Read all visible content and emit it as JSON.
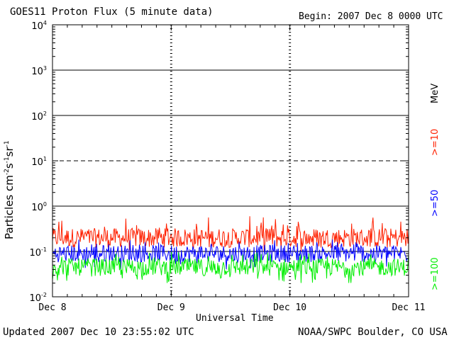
{
  "chart_data": {
    "type": "line",
    "title": "GOES11 Proton Flux (5 minute data)",
    "begin_label": "Begin: 2007 Dec 8 0000 UTC",
    "ylabel": "Particles cm⁻²s⁻¹sr⁻¹",
    "ylabel_main": "Particles cm",
    "ylabel_sup1": "-2",
    "ylabel_mid1": "s",
    "ylabel_sup2": "-1",
    "ylabel_mid2": "sr",
    "ylabel_sup3": "-1",
    "xlabel": "Universal Time",
    "yscale": "log",
    "ylim": [
      0.01,
      10000
    ],
    "y_ticks": [
      {
        "base": "10",
        "exp": "4"
      },
      {
        "base": "10",
        "exp": "3"
      },
      {
        "base": "10",
        "exp": "2"
      },
      {
        "base": "10",
        "exp": "1"
      },
      {
        "base": "10",
        "exp": "0"
      },
      {
        "base": "10",
        "exp": "-1"
      },
      {
        "base": "10",
        "exp": "-2"
      }
    ],
    "x_ticks": [
      "Dec 8",
      "Dec 9",
      "Dec 10",
      "Dec 11"
    ],
    "xlim": [
      "2007-12-08T00:00Z",
      "2007-12-11T00:00Z"
    ],
    "reference_lines": [
      {
        "value": 1000,
        "style": "solid"
      },
      {
        "value": 100,
        "style": "solid"
      },
      {
        "value": 10,
        "style": "dashed"
      },
      {
        "value": 1,
        "style": "solid"
      },
      {
        "value": 0.1,
        "style": "solid"
      }
    ],
    "series": [
      {
        "name": ">=10",
        "unit": "MeV",
        "color": "#ff2000",
        "typical_value": 0.2,
        "range": [
          0.1,
          0.6
        ]
      },
      {
        "name": ">=50",
        "color": "#0000ff",
        "typical_value": 0.09,
        "range": [
          0.04,
          0.2
        ]
      },
      {
        "name": ">=100",
        "color": "#00ee00",
        "typical_value": 0.045,
        "range": [
          0.02,
          0.1
        ]
      }
    ],
    "legend_position": "right"
  },
  "footer": {
    "updated": "Updated 2007 Dec 10 23:55:02 UTC",
    "source": "NOAA/SWPC Boulder, CO USA"
  },
  "legend_unit": "MeV"
}
